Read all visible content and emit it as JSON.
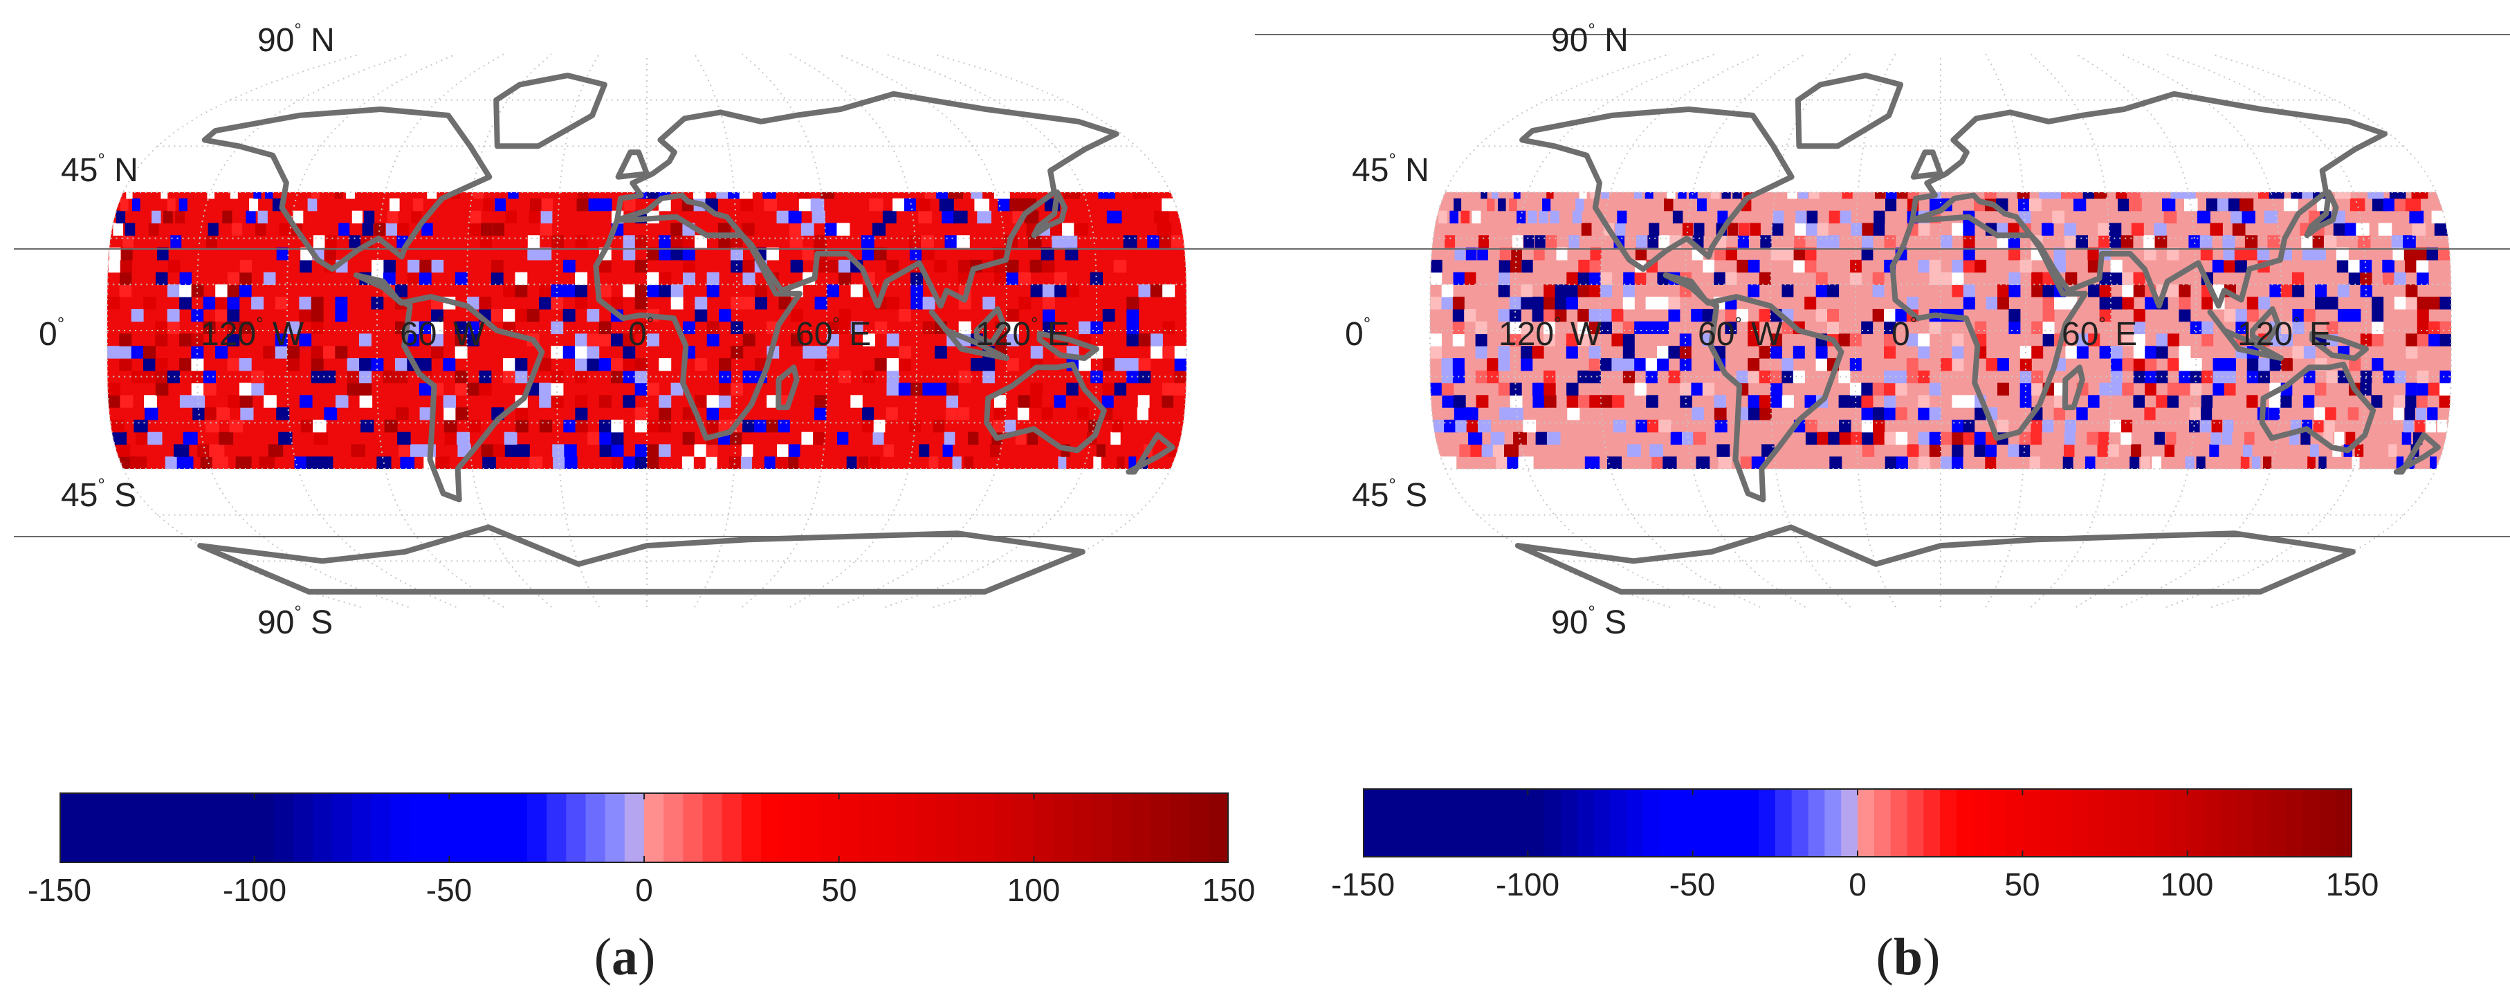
{
  "panels": [
    {
      "id": "a",
      "caption_open": "(",
      "caption_letter": "a",
      "caption_close": ")",
      "lat_labels": {
        "n90": "90",
        "n45": "45",
        "eq": "0",
        "s45": "45",
        "s90": "90"
      },
      "lat_suffix": {
        "n90": "N",
        "n45": "N",
        "eq": "",
        "s45": "S",
        "s90": "S"
      },
      "lon_labels": [
        {
          "value": "120",
          "dir": "W"
        },
        {
          "value": "60",
          "dir": "W"
        },
        {
          "value": "0",
          "dir": ""
        },
        {
          "value": "60",
          "dir": "E"
        },
        {
          "value": "120",
          "dir": "E"
        }
      ],
      "degree_symbol": "°",
      "background_fill": "#ee0a0a",
      "seed": 11,
      "blue_fraction": 0.17,
      "white_fraction": 0.05
    },
    {
      "id": "b",
      "caption_open": "(",
      "caption_letter": "b",
      "caption_close": ")",
      "lat_labels": {
        "n90": "90",
        "n45": "45",
        "eq": "0",
        "s45": "45",
        "s90": "90"
      },
      "lat_suffix": {
        "n90": "N",
        "n45": "N",
        "eq": "",
        "s45": "S",
        "s90": "S"
      },
      "lon_labels": [
        {
          "value": "120",
          "dir": "W"
        },
        {
          "value": "60",
          "dir": "W"
        },
        {
          "value": "0",
          "dir": ""
        },
        {
          "value": "60",
          "dir": "E"
        },
        {
          "value": "120",
          "dir": "E"
        }
      ],
      "degree_symbol": "°",
      "background_fill": "#f59a9a",
      "seed": 29,
      "blue_fraction": 0.22,
      "white_fraction": 0.04
    }
  ],
  "colorbar": {
    "ticks": [
      "-150",
      "-100",
      "-50",
      "0",
      "50",
      "100",
      "150"
    ],
    "range": [
      -150,
      150
    ],
    "colors": {
      "deep_blue": "#00008b",
      "blue": "#0000ff",
      "pale_blue": "#a6a6ff",
      "pale_red": "#ff9c9c",
      "red": "#ff0000",
      "dark_red": "#8b0000"
    }
  },
  "colors": {
    "coastline": "#6e6e6e",
    "graticule": "#c8c8c8",
    "frame_line": "#6a6a6a",
    "missing": "#ffffff"
  }
}
